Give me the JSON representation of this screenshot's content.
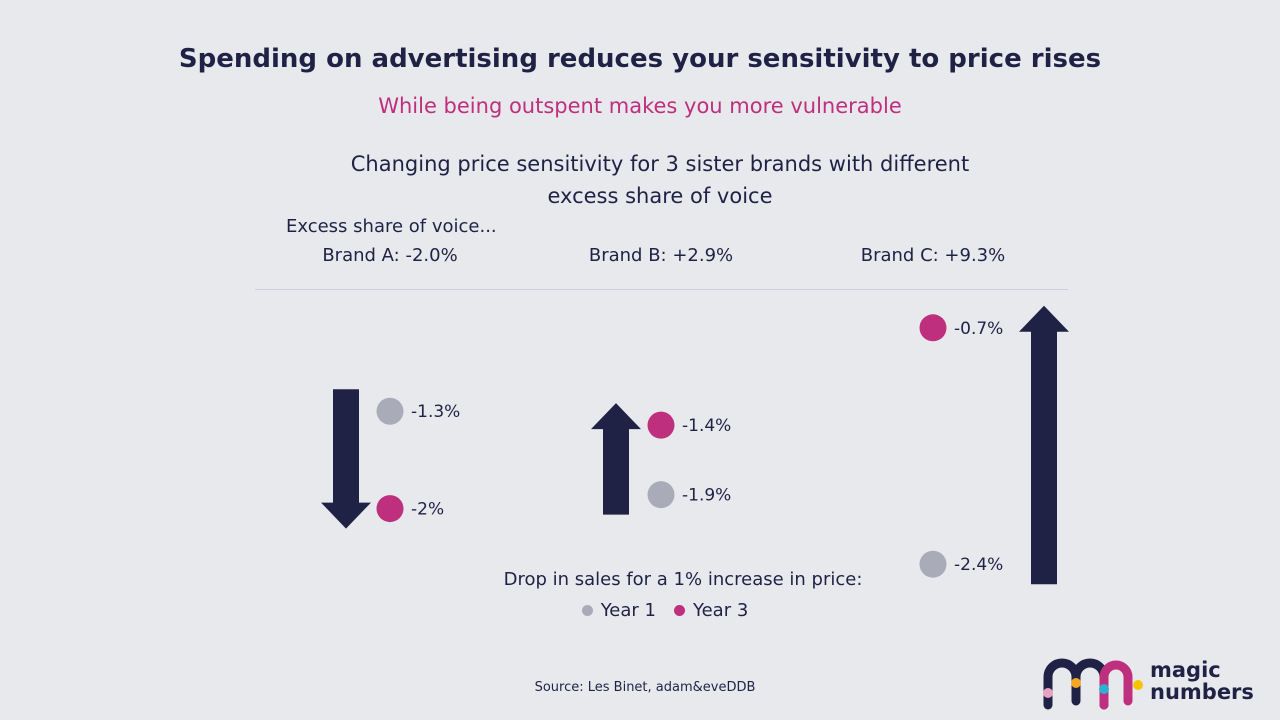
{
  "title": "Spending on advertising reduces your sensitivity to price rises",
  "subtitle": "While being outspent makes you more vulnerable",
  "colors": {
    "navy": "#1f2245",
    "magenta": "#be2f7d",
    "grey": "#a9abb8",
    "background": "#e8e9ed"
  },
  "chart_data": {
    "type": "scatter",
    "title_line1": "Changing price sensitivity for 3 sister brands with different",
    "title_line2": "excess share of voice",
    "esov_label": "Excess share of voice...",
    "ylim": [
      -2.6,
      -0.5
    ],
    "brands": [
      {
        "name": "Brand A",
        "esov_label": "Brand A: -2.0%",
        "esov": -2.0,
        "year1": -1.3,
        "year3": -2.0,
        "year1_label": "-1.3%",
        "year3_label": "-2%",
        "direction": "down"
      },
      {
        "name": "Brand B",
        "esov_label": "Brand B: +2.9%",
        "esov": 2.9,
        "year1": -1.9,
        "year3": -1.4,
        "year1_label": "-1.9%",
        "year3_label": "-1.4%",
        "direction": "up"
      },
      {
        "name": "Brand C",
        "esov_label": "Brand C: +9.3%",
        "esov": 9.3,
        "year1": -2.4,
        "year3": -0.7,
        "year1_label": "-2.4%",
        "year3_label": "-0.7%",
        "direction": "up"
      }
    ],
    "series": [
      {
        "name": "Year 1",
        "color": "#a9abb8"
      },
      {
        "name": "Year 3",
        "color": "#be2f7d"
      }
    ],
    "legend_title": "Drop in sales for a 1% increase in price:"
  },
  "source": "Source: Les Binet, adam&eveDDB",
  "logo": {
    "line1": "magic",
    "line2": "numbers"
  }
}
